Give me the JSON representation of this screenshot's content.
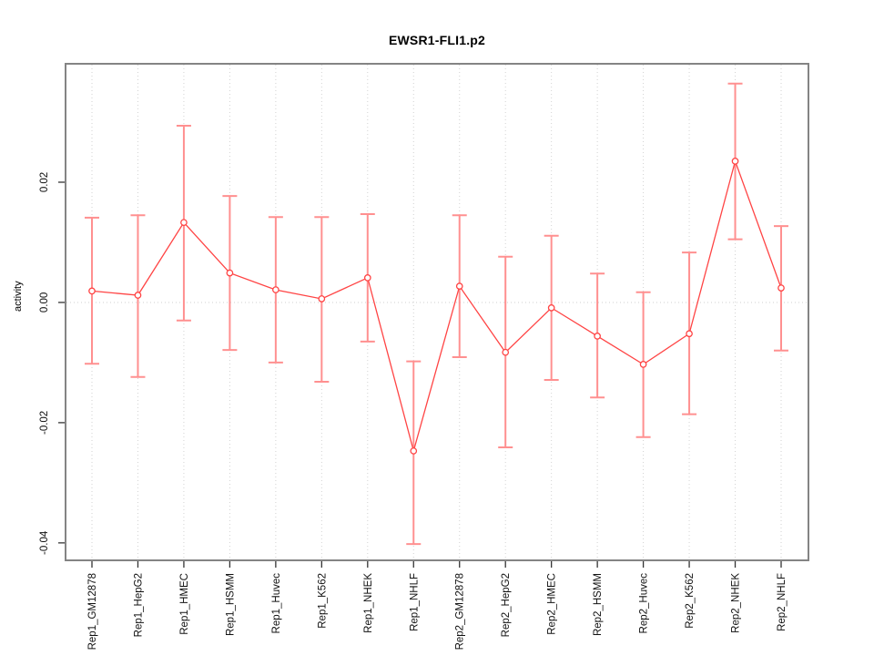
{
  "title": "EWSR1-FLI1.p2",
  "chart_data": {
    "type": "line",
    "title": "EWSR1-FLI1.p2",
    "xlabel": "",
    "ylabel": "activity",
    "legend_position": "none",
    "grid": "vertical dotted gridline at every category; horizontal dotted line at y=0",
    "categories": [
      "Rep1_GM12878",
      "Rep1_HepG2",
      "Rep1_HMEC",
      "Rep1_HSMM",
      "Rep1_Huvec",
      "Rep1_K562",
      "Rep1_NHEK",
      "Rep1_NHLF",
      "Rep2_GM12878",
      "Rep2_HepG2",
      "Rep2_HMEC",
      "Rep2_HSMM",
      "Rep2_Huvec",
      "Rep2_K562",
      "Rep2_NHEK",
      "Rep2_NHLF"
    ],
    "series": [
      {
        "name": "activity",
        "marker": "open-circle",
        "values": [
          0.0019,
          0.0012,
          0.0133,
          0.0049,
          0.0021,
          0.0006,
          0.0041,
          -0.0247,
          0.0027,
          -0.0083,
          -0.0009,
          -0.0056,
          -0.0103,
          -0.0052,
          0.0235,
          0.0024
        ],
        "error_high": [
          0.0141,
          0.0145,
          0.0294,
          0.0177,
          0.0142,
          0.0142,
          0.0147,
          -0.0098,
          0.0145,
          0.0076,
          0.0111,
          0.0048,
          0.0017,
          0.0083,
          0.0364,
          0.0127
        ],
        "error_low": [
          -0.0102,
          -0.0124,
          -0.003,
          -0.0079,
          -0.01,
          -0.0132,
          -0.0065,
          -0.0402,
          -0.0091,
          -0.0241,
          -0.0129,
          -0.0158,
          -0.0224,
          -0.0186,
          0.0105,
          -0.008
        ]
      }
    ],
    "yticks": [
      -0.04,
      -0.02,
      0,
      0.02
    ],
    "ytick_labels": [
      "-0.04",
      "-0.02",
      "0.00",
      "0.02"
    ],
    "ylim": [
      -0.0429,
      0.0397
    ],
    "zero_line": 0
  },
  "colors": {
    "line": "#ff4444",
    "marker_stroke": "#ff4444",
    "error_bar": "#ff9090",
    "grid": "#d2d2d2",
    "zero_line": "#cfcfcf",
    "axis_border": "#848484",
    "tick": "#333333",
    "text": "#111111",
    "background": "#ffffff"
  }
}
